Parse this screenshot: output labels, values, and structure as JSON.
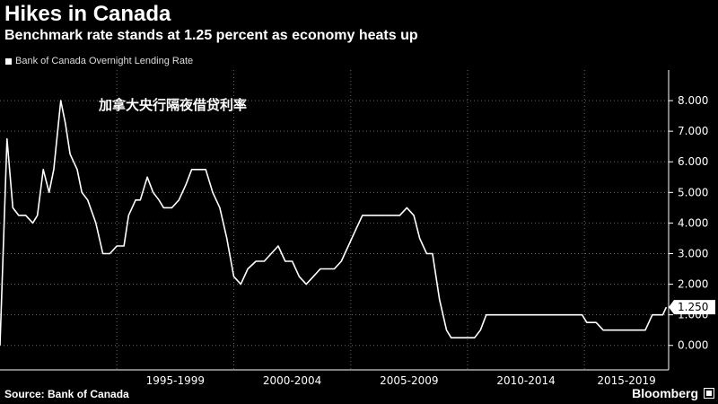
{
  "header": {
    "title": "Hikes in Canada",
    "subtitle": "Benchmark rate stands at 1.25 percent as economy heats up"
  },
  "footer": {
    "source": "Source: Bank of Canada",
    "brand": "Bloomberg"
  },
  "colors": {
    "background": "#000000",
    "line": "#ffffff",
    "grid": "#666666"
  },
  "chart_data": {
    "type": "line",
    "title": "Hikes in Canada",
    "subtitle": "Benchmark rate stands at 1.25 percent as economy heats up",
    "annotation": "加拿大央行隔夜借贷利率",
    "ylim": [
      -0.8,
      9.0
    ],
    "yticks": [
      "0.000",
      "1.000",
      "2.000",
      "3.000",
      "4.000",
      "5.000",
      "6.000",
      "7.000",
      "8.000"
    ],
    "ytick_values": [
      0,
      1,
      2,
      3,
      4,
      5,
      6,
      7,
      8
    ],
    "x_period_labels": [
      "1995-1999",
      "2000-2004",
      "2005-2009",
      "2010-2014",
      "2015-2019"
    ],
    "xlim": [
      1990.0,
      2018.6
    ],
    "grid": true,
    "legend_position": "top-left",
    "current_value_label": "1.250",
    "series": [
      {
        "name": "Bank of Canada Overnight Lending Rate",
        "x": [
          1990.0,
          1990.3,
          1990.55,
          1990.8,
          1991.1,
          1991.4,
          1991.6,
          1991.85,
          1992.1,
          1992.3,
          1992.6,
          1992.8,
          1993.0,
          1993.3,
          1993.5,
          1993.75,
          1994.1,
          1994.4,
          1994.7,
          1995.0,
          1995.3,
          1995.5,
          1995.8,
          1996.0,
          1996.3,
          1996.55,
          1996.8,
          1997.0,
          1997.35,
          1997.65,
          1997.95,
          1998.2,
          1998.5,
          1998.8,
          1999.1,
          1999.4,
          1999.7,
          2000.0,
          2000.3,
          2000.6,
          2000.95,
          2001.3,
          2001.6,
          2001.9,
          2002.2,
          2002.5,
          2002.8,
          2003.1,
          2003.4,
          2003.7,
          2004.0,
          2004.3,
          2004.6,
          2004.9,
          2005.2,
          2005.5,
          2005.8,
          2006.1,
          2006.4,
          2006.7,
          2007.1,
          2007.4,
          2007.7,
          2007.95,
          2008.25,
          2008.5,
          2008.8,
          2009.1,
          2009.3,
          2009.6,
          2009.9,
          2010.3,
          2010.55,
          2010.8,
          2011.2,
          2012.0,
          2013.0,
          2014.0,
          2014.9,
          2015.1,
          2015.5,
          2015.8,
          2016.5,
          2017.0,
          2017.4,
          2017.6,
          2017.9,
          2018.2,
          2018.35,
          2018.5
        ],
        "values": [
          0.0,
          6.75,
          4.5,
          4.25,
          4.25,
          4.0,
          4.25,
          5.75,
          5.0,
          5.75,
          8.0,
          7.25,
          6.25,
          5.75,
          5.0,
          4.75,
          4.0,
          3.0,
          3.0,
          3.25,
          3.25,
          4.25,
          4.75,
          4.75,
          5.5,
          5.0,
          4.75,
          4.5,
          4.5,
          4.75,
          5.25,
          5.75,
          5.75,
          5.75,
          5.0,
          4.5,
          3.5,
          2.25,
          2.0,
          2.5,
          2.75,
          2.75,
          3.0,
          3.25,
          2.75,
          2.75,
          2.25,
          2.0,
          2.25,
          2.5,
          2.5,
          2.5,
          2.75,
          3.25,
          3.75,
          4.25,
          4.25,
          4.25,
          4.25,
          4.25,
          4.25,
          4.5,
          4.25,
          3.5,
          3.0,
          3.0,
          1.5,
          0.5,
          0.25,
          0.25,
          0.25,
          0.25,
          0.5,
          1.0,
          1.0,
          1.0,
          1.0,
          1.0,
          1.0,
          0.75,
          0.75,
          0.5,
          0.5,
          0.5,
          0.5,
          0.5,
          1.0,
          1.0,
          1.0,
          1.25
        ]
      }
    ]
  }
}
